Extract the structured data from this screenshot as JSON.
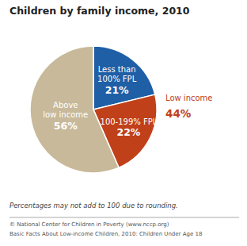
{
  "chart_data": {
    "type": "pie",
    "title": "Children by family income, 2010",
    "categories": [
      [
        "Less than",
        "100% FPL"
      ],
      [
        "100-199% FPL"
      ],
      [
        "Above",
        "low income"
      ]
    ],
    "values": [
      21,
      22,
      56
    ],
    "value_labels": [
      "21%",
      "22%",
      "56%"
    ],
    "data_labels": true,
    "colors": [
      "#1f5fa6",
      "#c0401a",
      "#c8b99a"
    ],
    "annotations": [
      {
        "text": "Low income",
        "color": "#c0401a"
      },
      {
        "text": "44%",
        "color": "#c0401a"
      }
    ],
    "note": "Percentages may not add to 100 due to rounding.",
    "footer": [
      "© National Center for Children in Poverty (www.nccp.org)",
      "Basic Facts About Low-income Children, 2010: Children Under Age 18"
    ]
  }
}
